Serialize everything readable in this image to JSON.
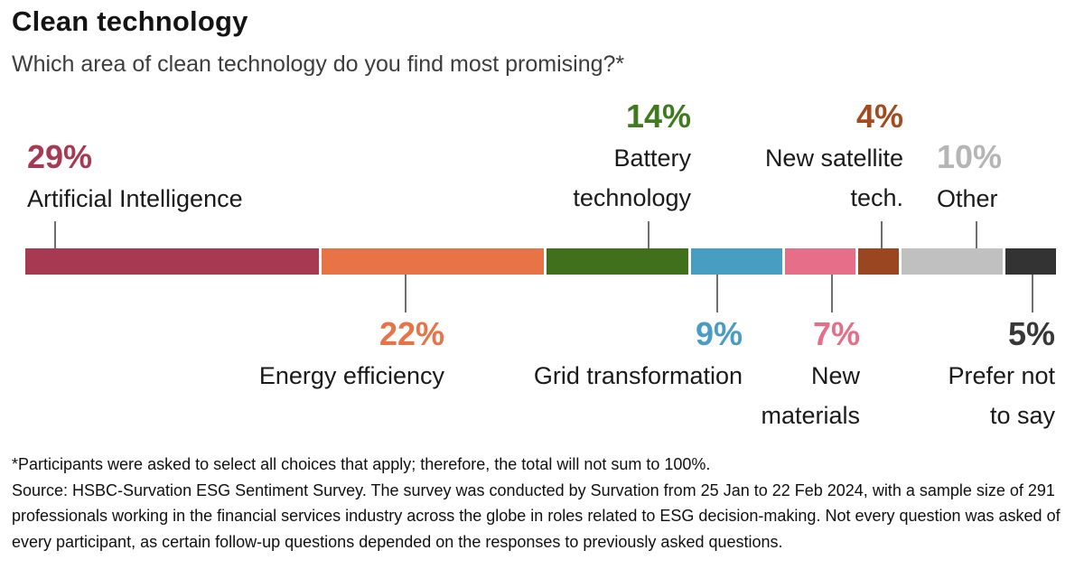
{
  "chart_data": {
    "type": "bar",
    "variant": "horizontal-stacked-single-bar",
    "title": "Clean technology",
    "subtitle": "Which area of clean technology do you find most promising?*",
    "unit": "%",
    "xlim": [
      0,
      100
    ],
    "axes": "none",
    "grid": false,
    "legend": "none",
    "categories": [
      "Artificial Intelligence",
      "Energy efficiency",
      "Battery technology",
      "Grid transformation",
      "New materials",
      "New satellite tech.",
      "Other",
      "Prefer not to say"
    ],
    "values": [
      29,
      22,
      14,
      9,
      7,
      4,
      10,
      5
    ],
    "segments": [
      {
        "id": "artificial-intelligence",
        "label": "Artificial Intelligence",
        "value": 29,
        "pct_text": "29%",
        "color": "#A73A52",
        "pct_color": "#A73A52",
        "label_position": "above",
        "label_lines": [
          "Artificial Intelligence"
        ]
      },
      {
        "id": "energy-efficiency",
        "label": "Energy efficiency",
        "value": 22,
        "pct_text": "22%",
        "color": "#E87347",
        "pct_color": "#E87347",
        "label_position": "below",
        "label_lines": [
          "Energy efficiency"
        ]
      },
      {
        "id": "battery-technology",
        "label": "Battery technology",
        "value": 14,
        "pct_text": "14%",
        "color": "#40701C",
        "pct_color": "#3F7A1E",
        "label_position": "above",
        "label_lines": [
          "Battery",
          "technology"
        ]
      },
      {
        "id": "grid-transformation",
        "label": "Grid transformation",
        "value": 9,
        "pct_text": "9%",
        "color": "#479DC2",
        "pct_color": "#4A9CC6",
        "label_position": "below",
        "label_lines": [
          "Grid transformation"
        ]
      },
      {
        "id": "new-materials",
        "label": "New materials",
        "value": 7,
        "pct_text": "7%",
        "color": "#E76E88",
        "pct_color": "#E76E88",
        "label_position": "below",
        "label_lines": [
          "New",
          "materials"
        ]
      },
      {
        "id": "new-satellite-tech",
        "label": "New satellite tech.",
        "value": 4,
        "pct_text": "4%",
        "color": "#9A4621",
        "pct_color": "#A34B20",
        "label_position": "above",
        "label_lines": [
          "New satellite",
          "tech."
        ]
      },
      {
        "id": "other",
        "label": "Other",
        "value": 10,
        "pct_text": "10%",
        "color": "#C0C0C0",
        "pct_color": "#B5B5B5",
        "label_position": "above",
        "label_lines": [
          "Other"
        ]
      },
      {
        "id": "prefer-not-to-say",
        "label": "Prefer not to say",
        "value": 5,
        "pct_text": "5%",
        "color": "#333333",
        "pct_color": "#383838",
        "label_position": "below",
        "label_lines": [
          "Prefer not",
          "to say"
        ]
      }
    ]
  },
  "footnote": {
    "note": "*Participants were asked to select all choices that apply; therefore, the total will not sum to 100%.",
    "source": "Source: HSBC-Survation ESG Sentiment Survey. The survey was conducted by Survation from 25 Jan to 22 Feb 2024, with a sample size of 291 professionals working in the financial services industry across the globe in roles related to ESG decision-making. Not every question was asked of every participant, as certain follow-up questions depended on the responses to previously asked questions."
  }
}
